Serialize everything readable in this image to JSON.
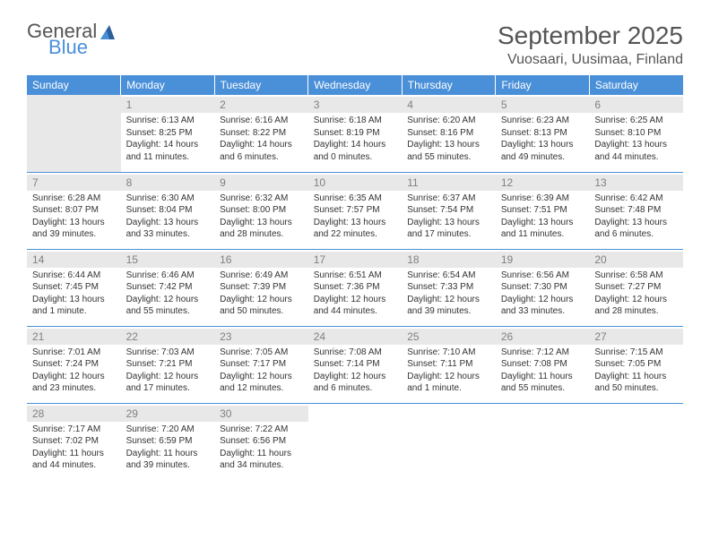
{
  "logo": {
    "line1": "General",
    "line2": "Blue",
    "icon_color": "#2c5f9e"
  },
  "month_title": "September 2025",
  "location": "Vuosaari, Uusimaa, Finland",
  "header_bg": "#4a90d9",
  "daynum_bg": "#e8e8e8",
  "border_color": "#4a90d9",
  "weekdays": [
    "Sunday",
    "Monday",
    "Tuesday",
    "Wednesday",
    "Thursday",
    "Friday",
    "Saturday"
  ],
  "days": {
    "1": {
      "sr": "6:13 AM",
      "ss": "8:25 PM",
      "dl": "14 hours and 11 minutes."
    },
    "2": {
      "sr": "6:16 AM",
      "ss": "8:22 PM",
      "dl": "14 hours and 6 minutes."
    },
    "3": {
      "sr": "6:18 AM",
      "ss": "8:19 PM",
      "dl": "14 hours and 0 minutes."
    },
    "4": {
      "sr": "6:20 AM",
      "ss": "8:16 PM",
      "dl": "13 hours and 55 minutes."
    },
    "5": {
      "sr": "6:23 AM",
      "ss": "8:13 PM",
      "dl": "13 hours and 49 minutes."
    },
    "6": {
      "sr": "6:25 AM",
      "ss": "8:10 PM",
      "dl": "13 hours and 44 minutes."
    },
    "7": {
      "sr": "6:28 AM",
      "ss": "8:07 PM",
      "dl": "13 hours and 39 minutes."
    },
    "8": {
      "sr": "6:30 AM",
      "ss": "8:04 PM",
      "dl": "13 hours and 33 minutes."
    },
    "9": {
      "sr": "6:32 AM",
      "ss": "8:00 PM",
      "dl": "13 hours and 28 minutes."
    },
    "10": {
      "sr": "6:35 AM",
      "ss": "7:57 PM",
      "dl": "13 hours and 22 minutes."
    },
    "11": {
      "sr": "6:37 AM",
      "ss": "7:54 PM",
      "dl": "13 hours and 17 minutes."
    },
    "12": {
      "sr": "6:39 AM",
      "ss": "7:51 PM",
      "dl": "13 hours and 11 minutes."
    },
    "13": {
      "sr": "6:42 AM",
      "ss": "7:48 PM",
      "dl": "13 hours and 6 minutes."
    },
    "14": {
      "sr": "6:44 AM",
      "ss": "7:45 PM",
      "dl": "13 hours and 1 minute."
    },
    "15": {
      "sr": "6:46 AM",
      "ss": "7:42 PM",
      "dl": "12 hours and 55 minutes."
    },
    "16": {
      "sr": "6:49 AM",
      "ss": "7:39 PM",
      "dl": "12 hours and 50 minutes."
    },
    "17": {
      "sr": "6:51 AM",
      "ss": "7:36 PM",
      "dl": "12 hours and 44 minutes."
    },
    "18": {
      "sr": "6:54 AM",
      "ss": "7:33 PM",
      "dl": "12 hours and 39 minutes."
    },
    "19": {
      "sr": "6:56 AM",
      "ss": "7:30 PM",
      "dl": "12 hours and 33 minutes."
    },
    "20": {
      "sr": "6:58 AM",
      "ss": "7:27 PM",
      "dl": "12 hours and 28 minutes."
    },
    "21": {
      "sr": "7:01 AM",
      "ss": "7:24 PM",
      "dl": "12 hours and 23 minutes."
    },
    "22": {
      "sr": "7:03 AM",
      "ss": "7:21 PM",
      "dl": "12 hours and 17 minutes."
    },
    "23": {
      "sr": "7:05 AM",
      "ss": "7:17 PM",
      "dl": "12 hours and 12 minutes."
    },
    "24": {
      "sr": "7:08 AM",
      "ss": "7:14 PM",
      "dl": "12 hours and 6 minutes."
    },
    "25": {
      "sr": "7:10 AM",
      "ss": "7:11 PM",
      "dl": "12 hours and 1 minute."
    },
    "26": {
      "sr": "7:12 AM",
      "ss": "7:08 PM",
      "dl": "11 hours and 55 minutes."
    },
    "27": {
      "sr": "7:15 AM",
      "ss": "7:05 PM",
      "dl": "11 hours and 50 minutes."
    },
    "28": {
      "sr": "7:17 AM",
      "ss": "7:02 PM",
      "dl": "11 hours and 44 minutes."
    },
    "29": {
      "sr": "7:20 AM",
      "ss": "6:59 PM",
      "dl": "11 hours and 39 minutes."
    },
    "30": {
      "sr": "7:22 AM",
      "ss": "6:56 PM",
      "dl": "11 hours and 34 minutes."
    }
  },
  "labels": {
    "sunrise": "Sunrise:",
    "sunset": "Sunset:",
    "daylight": "Daylight:"
  },
  "grid": [
    [
      null,
      1,
      2,
      3,
      4,
      5,
      6
    ],
    [
      7,
      8,
      9,
      10,
      11,
      12,
      13
    ],
    [
      14,
      15,
      16,
      17,
      18,
      19,
      20
    ],
    [
      21,
      22,
      23,
      24,
      25,
      26,
      27
    ],
    [
      28,
      29,
      30,
      null,
      null,
      null,
      null
    ]
  ]
}
